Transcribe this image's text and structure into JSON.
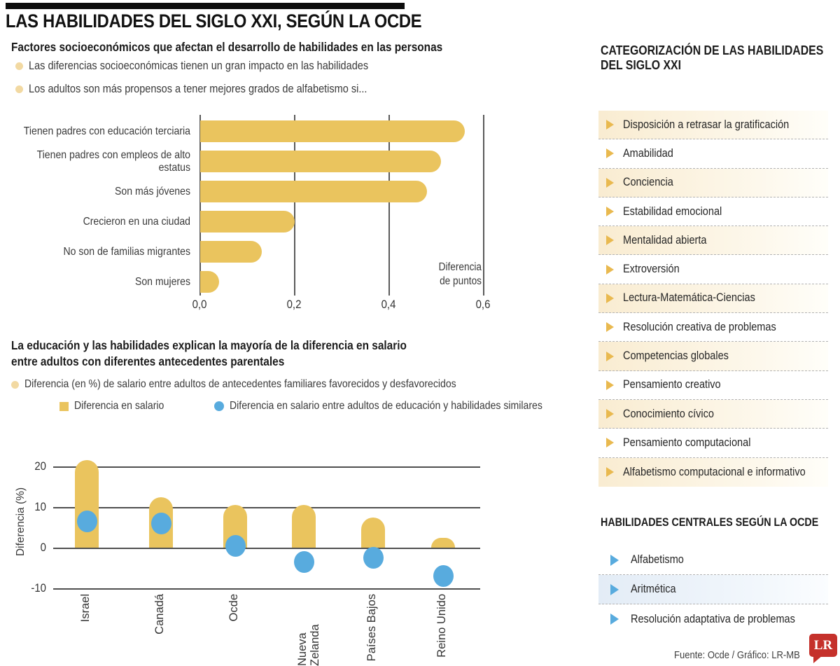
{
  "header": {
    "title": "LAS HABILIDADES DEL SIGLO XXI, SEGÚN LA OCDE"
  },
  "section1": {
    "heading": "Factores socioeconómicos que afectan el desarrollo de habilidades en las personas",
    "bullets": [
      "Las diferencias socioeconómicas tienen un gran impacto en las habilidades",
      "Los adultos son más propensos a tener mejores grados de alfabetismo si..."
    ]
  },
  "section2": {
    "heading_lines": [
      "La educación y las habilidades explican la mayoría de la diferencia en salario",
      "entre adultos con diferentes antecedentes parentales"
    ],
    "lead": "Diferencia (en %) de salario entre adultos de antecedentes familiares favorecidos y desfavorecidos"
  },
  "chart_data": [
    {
      "type": "bar",
      "orientation": "horizontal",
      "title": "Factores socioeconómicos que afectan el desarrollo de habilidades en las personas",
      "categories": [
        "Tienen padres con educación terciaria",
        "Tienen padres con empleos de alto estatus",
        "Son más jóvenes",
        "Crecieron en una ciudad",
        "No son de familias migrantes",
        "Son mujeres"
      ],
      "values": [
        0.56,
        0.51,
        0.48,
        0.2,
        0.13,
        0.04
      ],
      "xlabel": "Diferencia de puntos",
      "xlabel_lines": [
        "Diferencia",
        "de puntos"
      ],
      "xticks": [
        "0,0",
        "0,2",
        "0,4",
        "0,6"
      ],
      "xlim": [
        0,
        0.6
      ],
      "grid": "vertical"
    },
    {
      "type": "bar+scatter",
      "title": "La educación y las habilidades explican la mayoría de la diferencia en salario entre adultos con diferentes antecedentes parentales",
      "categories": [
        "Israel",
        "Canadá",
        "Ocde",
        "Nueva Zelanda",
        "Países Bajos",
        "Reino Unido"
      ],
      "series": [
        {
          "name": "Diferencia en salario",
          "type": "bar",
          "color": "#eac45e",
          "values": [
            21.5,
            12.5,
            10.5,
            10.5,
            7.5,
            2.5
          ]
        },
        {
          "name": "Diferencia en salario entre adultos de educación y habilidades similares",
          "type": "scatter",
          "color": "#58abde",
          "values": [
            6.5,
            6,
            0.5,
            -3.5,
            -2.5,
            -7
          ]
        }
      ],
      "ylabel": "Diferencia (%)",
      "yticks": [
        20,
        10,
        0,
        -10
      ],
      "ylim": [
        -13,
        24
      ],
      "grid": "horizontal",
      "legend_position": "top"
    }
  ],
  "sidebar": {
    "heading_lines": [
      "CATEGORIZACIÓN DE LAS HABILIDADES",
      "DEL SIGLO XXI"
    ],
    "items": [
      "Disposición a retrasar la gratificación",
      "Amabilidad",
      "Conciencia",
      "Estabilidad emocional",
      "Mentalidad abierta",
      "Extroversión",
      "Lectura-Matemática-Ciencias",
      "Resolución creativa de problemas",
      "Competencias globales",
      "Pensamiento creativo",
      "Conocimiento cívico",
      "Pensamiento computacional",
      "Alfabetismo computacional e informativo"
    ],
    "central": {
      "heading": "HABILIDADES CENTRALES SEGÚN LA OCDE",
      "items": [
        "Alfabetismo",
        "Aritmética",
        "Resolución adaptativa de problemas"
      ],
      "highlighted_index": 1
    }
  },
  "footer": {
    "source": "Fuente: Ocde / Gráfico: LR-MB",
    "logo": "LR"
  },
  "colors": {
    "bar_yellow": "#eac45e",
    "dot_blue": "#58abde",
    "bullet_cream": "#f2d9a2",
    "row_cream": "#f9ecd1",
    "row_blue": "#e3ecf6",
    "triangle_yellow": "#e9b94f",
    "dash_gray": "#b3b3b3",
    "logo_red": "#c5312b",
    "top_bar_black": "#0d0d0d"
  }
}
